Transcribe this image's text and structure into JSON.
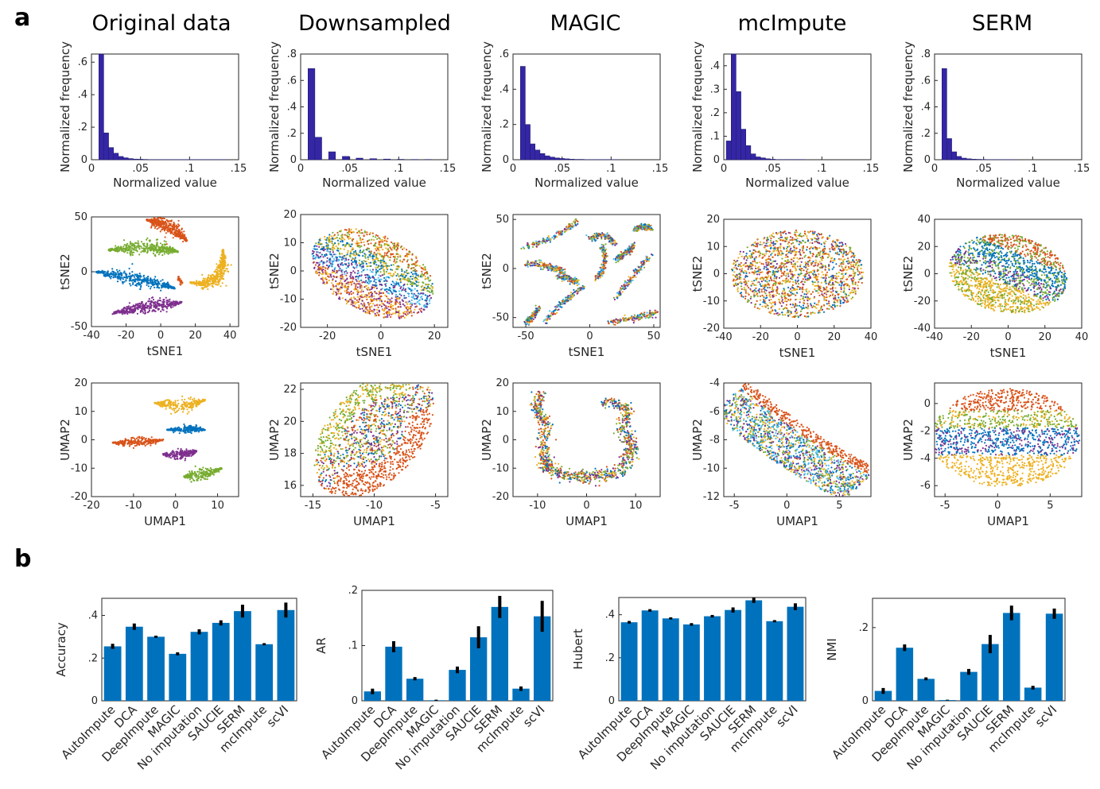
{
  "panels": {
    "a": "a",
    "b": "b"
  },
  "colors": {
    "hist": "#3526a6",
    "bar": "#0072bd",
    "err": "#000000",
    "clusters": [
      "#d95319",
      "#edb120",
      "#7e2f8e",
      "#77ac30",
      "#0072bd",
      "#4dbeee",
      "#a2142f"
    ]
  },
  "columns": [
    "Original data",
    "Downsampled",
    "MAGIC",
    "mcImpute",
    "SERM"
  ],
  "chart_data": [
    {
      "type": "bar",
      "method": "Original data",
      "plot": "histogram",
      "xlabel": "Normalized value",
      "ylabel": "Normalized frequency",
      "xlim": [
        0,
        0.15
      ],
      "ylim": [
        0,
        0.65
      ],
      "xticks": [
        0,
        0.05,
        0.1,
        0.15
      ],
      "yticks": [
        0,
        0.2,
        0.4,
        0.6
      ],
      "binwidth": 0.005,
      "bin_start": 0.0075,
      "values": [
        0.65,
        0.165,
        0.075,
        0.04,
        0.02,
        0.012,
        0.007,
        0.004,
        0.003,
        0.002,
        0.001,
        0.001,
        0.001,
        0.001,
        0.001,
        0.001,
        0.001,
        0.001,
        0.001,
        0.001,
        0.001,
        0.001,
        0.001,
        0.001,
        0.001,
        0.001
      ]
    },
    {
      "type": "bar",
      "method": "Downsampled",
      "plot": "histogram",
      "xlabel": "Normalized value",
      "ylabel": "Normalized frequency",
      "xlim": [
        0,
        0.15
      ],
      "ylim": [
        0,
        0.8
      ],
      "xticks": [
        0,
        0.05,
        0.1,
        0.15
      ],
      "yticks": [
        0,
        0.2,
        0.4,
        0.6,
        0.8
      ],
      "binwidth": 0.007,
      "bin_start": 0.0075,
      "values": [
        0.69,
        0.17,
        0.0,
        0.06,
        0.0,
        0.025,
        0.0,
        0.012,
        0.0,
        0.008,
        0.0,
        0.005,
        0.0,
        0.003,
        0.0,
        0.002,
        0.0,
        0.002,
        0.0
      ]
    },
    {
      "type": "bar",
      "method": "MAGIC",
      "plot": "histogram",
      "xlabel": "Normalized value",
      "ylabel": "Normalized frequency",
      "xlim": [
        0,
        0.15
      ],
      "ylim": [
        0,
        0.6
      ],
      "xticks": [
        0,
        0.05,
        0.1,
        0.15
      ],
      "yticks": [
        0,
        0.2,
        0.4,
        0.6
      ],
      "binwidth": 0.005,
      "bin_start": 0.0075,
      "values": [
        0.53,
        0.2,
        0.09,
        0.055,
        0.035,
        0.022,
        0.015,
        0.01,
        0.007,
        0.005,
        0.003,
        0.002,
        0.002,
        0.001,
        0.001,
        0.001,
        0.001,
        0.001,
        0.001,
        0.001
      ]
    },
    {
      "type": "bar",
      "method": "mcImpute",
      "plot": "histogram",
      "xlabel": "Normalized value",
      "ylabel": "Normalized frequency",
      "xlim": [
        0,
        0.15
      ],
      "ylim": [
        0,
        0.45
      ],
      "xticks": [
        0,
        0.05,
        0.1,
        0.15
      ],
      "yticks": [
        0,
        0.1,
        0.2,
        0.3,
        0.4
      ],
      "binwidth": 0.005,
      "bin_start": 0.0025,
      "values": [
        0.08,
        0.45,
        0.29,
        0.13,
        0.06,
        0.025,
        0.012,
        0.008,
        0.004,
        0.002,
        0.001,
        0.001,
        0.001,
        0.001,
        0.001,
        0.001
      ]
    },
    {
      "type": "bar",
      "method": "SERM",
      "plot": "histogram",
      "xlabel": "Normalized value",
      "ylabel": "Normalized frequency",
      "xlim": [
        0,
        0.15
      ],
      "ylim": [
        0,
        0.8
      ],
      "xticks": [
        0,
        0.05,
        0.1,
        0.15
      ],
      "yticks": [
        0,
        0.2,
        0.4,
        0.6,
        0.8
      ],
      "binwidth": 0.005,
      "bin_start": 0.0075,
      "values": [
        0.69,
        0.16,
        0.06,
        0.025,
        0.012,
        0.007,
        0.004,
        0.003,
        0.002,
        0.001,
        0.001,
        0.001,
        0.001,
        0.001,
        0.001
      ]
    },
    {
      "type": "scatter",
      "method": "Original data",
      "xlabel": "tSNE1",
      "ylabel": "tSNE2",
      "xlim": [
        -40,
        45
      ],
      "ylim": [
        -50,
        50
      ],
      "xticks": [
        -40,
        -20,
        0,
        20,
        40
      ],
      "yticks": [
        -50,
        0,
        50
      ],
      "pattern": "orig_tsne"
    },
    {
      "type": "scatter",
      "method": "Downsampled",
      "xlabel": "tSNE1",
      "ylabel": "tSNE2",
      "xlim": [
        -30,
        25
      ],
      "ylim": [
        -20,
        20
      ],
      "xticks": [
        -20,
        0,
        20
      ],
      "yticks": [
        -20,
        -10,
        0,
        10,
        20
      ],
      "pattern": "blob_tsne"
    },
    {
      "type": "scatter",
      "method": "MAGIC",
      "xlabel": "tSNE1",
      "ylabel": "tSNE2",
      "xlim": [
        -60,
        55
      ],
      "ylim": [
        -60,
        55
      ],
      "xticks": [
        -50,
        0,
        50
      ],
      "yticks": [
        -50,
        0,
        50
      ],
      "pattern": "magic_tsne"
    },
    {
      "type": "scatter",
      "method": "mcImpute",
      "xlabel": "tSNE1",
      "ylabel": "tSNE2",
      "xlim": [
        -40,
        40
      ],
      "ylim": [
        -20,
        20
      ],
      "xticks": [
        -40,
        -20,
        0,
        20,
        40
      ],
      "yticks": [
        -20,
        -10,
        0,
        10,
        20
      ],
      "pattern": "mc_tsne"
    },
    {
      "type": "scatter",
      "method": "SERM",
      "xlabel": "tSNE1",
      "ylabel": "tSNE2",
      "xlim": [
        -40,
        40
      ],
      "ylim": [
        -40,
        40
      ],
      "xticks": [
        -40,
        -20,
        0,
        20,
        40
      ],
      "yticks": [
        -40,
        -20,
        0,
        20,
        40
      ],
      "pattern": "serm_tsne"
    },
    {
      "type": "scatter",
      "method": "Original data",
      "xlabel": "UMAP1",
      "ylabel": "UMAP2",
      "xlim": [
        -20,
        15
      ],
      "ylim": [
        -20,
        20
      ],
      "xticks": [
        -20,
        -10,
        0,
        10
      ],
      "yticks": [
        -20,
        -10,
        0,
        10,
        20
      ],
      "pattern": "orig_umap"
    },
    {
      "type": "scatter",
      "method": "Downsampled",
      "xlabel": "UMAP1",
      "ylabel": "UMAP2",
      "xlim": [
        -16,
        -4
      ],
      "ylim": [
        15.3,
        22.4
      ],
      "xticks": [
        -15,
        -10,
        -5
      ],
      "yticks": [
        16,
        18,
        20,
        22
      ],
      "pattern": "down_umap"
    },
    {
      "type": "scatter",
      "method": "MAGIC",
      "xlabel": "UMAP1",
      "ylabel": "UMAP2",
      "xlim": [
        -15,
        15
      ],
      "ylim": [
        -20,
        20
      ],
      "xticks": [
        -10,
        0,
        10
      ],
      "yticks": [
        -20,
        -10,
        0,
        10,
        20
      ],
      "pattern": "magic_umap"
    },
    {
      "type": "scatter",
      "method": "mcImpute",
      "xlabel": "UMAP1",
      "ylabel": "UMAP2",
      "xlim": [
        -6,
        8
      ],
      "ylim": [
        -12,
        -4
      ],
      "xticks": [
        -5,
        0,
        5
      ],
      "yticks": [
        -12,
        -10,
        -8,
        -6,
        -4
      ],
      "pattern": "mc_umap"
    },
    {
      "type": "scatter",
      "method": "SERM",
      "xlabel": "UMAP1",
      "ylabel": "UMAP2",
      "xlim": [
        -6,
        8
      ],
      "ylim": [
        -6.8,
        1.5
      ],
      "xticks": [
        -5,
        0,
        5
      ],
      "yticks": [
        -6,
        -4,
        -2,
        0
      ],
      "pattern": "serm_umap"
    },
    {
      "type": "bar",
      "ylabel": "Accuracy",
      "categories": [
        "AutoImpute",
        "DCA",
        "DeepImpute",
        "MAGIC",
        "No imputation",
        "SAUCIE",
        "SERM",
        "mcImpute",
        "scVI"
      ],
      "values": [
        0.255,
        0.347,
        0.3,
        0.22,
        0.323,
        0.365,
        0.42,
        0.265,
        0.425
      ],
      "errors": [
        0.012,
        0.015,
        0.005,
        0.007,
        0.012,
        0.012,
        0.03,
        0.005,
        0.035
      ],
      "ylim": [
        0,
        0.48
      ],
      "yticks": [
        0,
        0.2,
        0.4
      ]
    },
    {
      "type": "bar",
      "ylabel": "AR",
      "categories": [
        "AutoImpute",
        "DCA",
        "DeepImpute",
        "MAGIC",
        "No imputation",
        "SAUCIE",
        "SERM",
        "mcImpute",
        "scVI"
      ],
      "values": [
        0.017,
        0.098,
        0.04,
        0.001,
        0.056,
        0.115,
        0.17,
        0.022,
        0.153
      ],
      "errors": [
        0.005,
        0.01,
        0.003,
        0.001,
        0.006,
        0.02,
        0.02,
        0.004,
        0.028
      ],
      "ylim": [
        0,
        0.2
      ],
      "yticks": [
        0,
        0.1,
        0.2
      ]
    },
    {
      "type": "bar",
      "ylabel": "Hubert",
      "categories": [
        "AutoImpute",
        "DCA",
        "DeepImpute",
        "MAGIC",
        "No imputation",
        "SAUCIE",
        "SERM",
        "mcImpute",
        "scVI"
      ],
      "values": [
        0.365,
        0.42,
        0.383,
        0.355,
        0.393,
        0.422,
        0.467,
        0.37,
        0.437
      ],
      "errors": [
        0.006,
        0.006,
        0.005,
        0.006,
        0.006,
        0.012,
        0.012,
        0.005,
        0.016
      ],
      "ylim": [
        0,
        0.48
      ],
      "yticks": [
        0,
        0.2,
        0.4
      ]
    },
    {
      "type": "bar",
      "ylabel": "NMI",
      "categories": [
        "AutoImpute",
        "DCA",
        "DeepImpute",
        "MAGIC",
        "No imputation",
        "SAUCIE",
        "SERM",
        "mcImpute",
        "scVI"
      ],
      "values": [
        0.027,
        0.145,
        0.06,
        0.002,
        0.079,
        0.155,
        0.24,
        0.036,
        0.238
      ],
      "errors": [
        0.008,
        0.009,
        0.004,
        0.001,
        0.008,
        0.025,
        0.02,
        0.005,
        0.014
      ],
      "ylim": [
        0,
        0.28
      ],
      "yticks": [
        0,
        0.2
      ]
    }
  ]
}
